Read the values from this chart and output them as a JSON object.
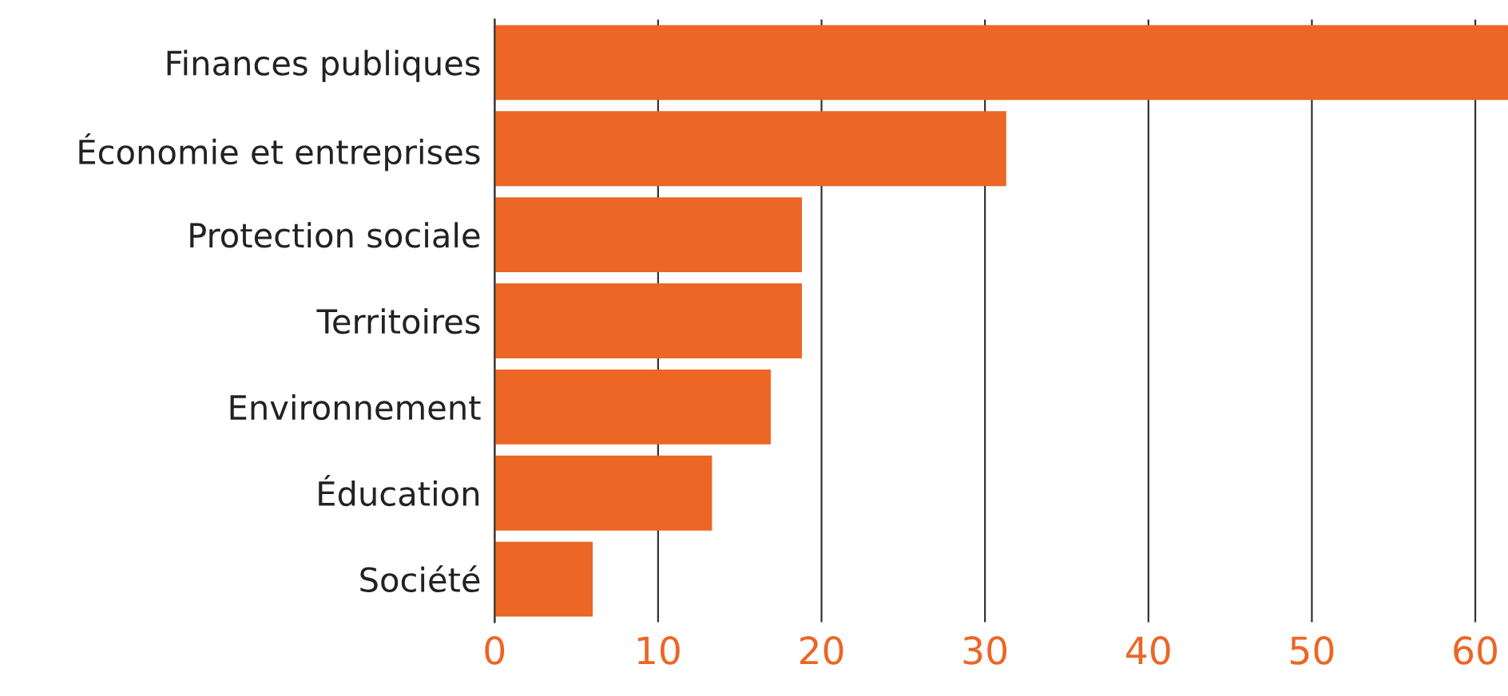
{
  "chart_data": {
    "type": "bar",
    "orientation": "horizontal",
    "categories": [
      "Finances publiques",
      "Économie et entreprises",
      "Protection sociale",
      "Territoires",
      "Environnement",
      "Éducation",
      "Société"
    ],
    "values": [
      62,
      31.3,
      18.8,
      18.8,
      16.9,
      13.3,
      6.0
    ],
    "color": "#ec6625",
    "xlim": [
      0,
      62
    ],
    "xticks": [
      0,
      10,
      20,
      30,
      40,
      50,
      60
    ],
    "grid": "x"
  }
}
